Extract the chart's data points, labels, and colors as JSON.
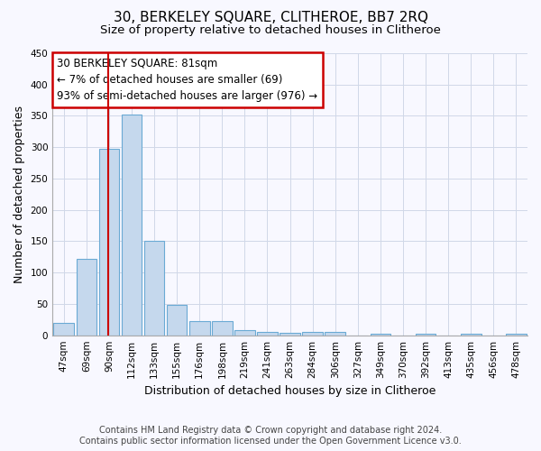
{
  "title": "30, BERKELEY SQUARE, CLITHEROE, BB7 2RQ",
  "subtitle": "Size of property relative to detached houses in Clitheroe",
  "xlabel": "Distribution of detached houses by size in Clitheroe",
  "ylabel": "Number of detached properties",
  "footer_line1": "Contains HM Land Registry data © Crown copyright and database right 2024.",
  "footer_line2": "Contains public sector information licensed under the Open Government Licence v3.0.",
  "categories": [
    "47sqm",
    "69sqm",
    "90sqm",
    "112sqm",
    "133sqm",
    "155sqm",
    "176sqm",
    "198sqm",
    "219sqm",
    "241sqm",
    "263sqm",
    "284sqm",
    "306sqm",
    "327sqm",
    "349sqm",
    "370sqm",
    "392sqm",
    "413sqm",
    "435sqm",
    "456sqm",
    "478sqm"
  ],
  "values": [
    20,
    122,
    298,
    352,
    151,
    49,
    23,
    23,
    8,
    5,
    4,
    5,
    5,
    0,
    3,
    0,
    3,
    0,
    3,
    0,
    3
  ],
  "bar_color": "#c5d8ed",
  "bar_edge_color": "#6aaad4",
  "grid_color": "#d0d8e8",
  "background_color": "#f8f8ff",
  "property_label": "30 BERKELEY SQUARE: 81sqm",
  "annotation_line1": "← 7% of detached houses are smaller (69)",
  "annotation_line2": "93% of semi-detached houses are larger (976) →",
  "annotation_box_color": "#ffffff",
  "annotation_box_edge_color": "#cc0000",
  "red_line_color": "#cc0000",
  "red_line_x": 1.95,
  "ylim": [
    0,
    450
  ],
  "yticks": [
    0,
    50,
    100,
    150,
    200,
    250,
    300,
    350,
    400,
    450
  ],
  "title_fontsize": 11,
  "subtitle_fontsize": 9.5,
  "xlabel_fontsize": 9,
  "ylabel_fontsize": 9,
  "tick_fontsize": 7.5,
  "annotation_fontsize": 8.5
}
